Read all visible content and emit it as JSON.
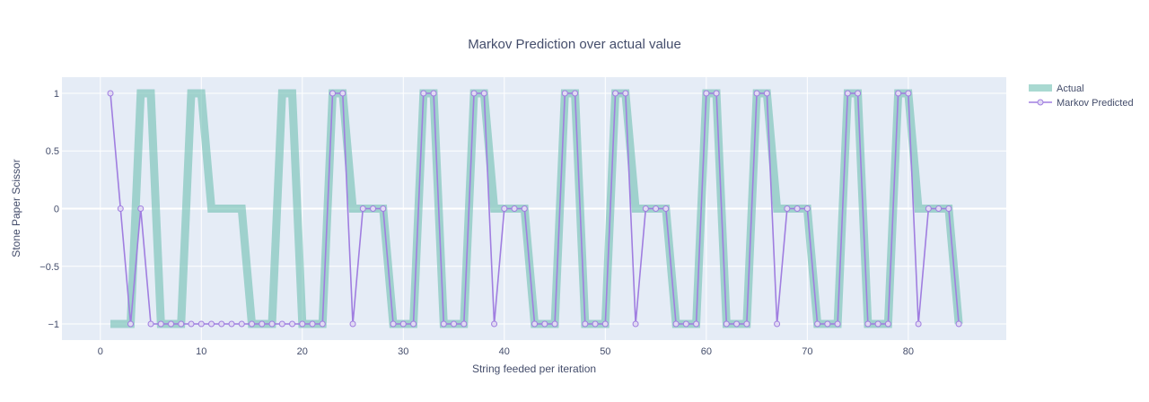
{
  "chart_data": {
    "type": "line",
    "title": "Markov Prediction over actual value",
    "xlabel": "String feeded per iteration",
    "ylabel": "Stone Paper Scissor",
    "xlim": [
      -3.8,
      89.7
    ],
    "ylim": [
      -1.14,
      1.14
    ],
    "xticks": [
      0,
      10,
      20,
      30,
      40,
      50,
      60,
      70,
      80
    ],
    "yticks": [
      -1,
      -0.5,
      0,
      0.5,
      1
    ],
    "ytick_labels": [
      "−1",
      "−0.5",
      "0",
      "0.5",
      "1"
    ],
    "legend_position": "top-right",
    "series": [
      {
        "name": "Actual",
        "color": "#6fc0b2",
        "style": "thick-line",
        "x": [
          1,
          2,
          3,
          4,
          5,
          6,
          7,
          8,
          9,
          10,
          11,
          12,
          13,
          14,
          15,
          16,
          17,
          18,
          19,
          20,
          21,
          22,
          23,
          24,
          25,
          26,
          27,
          28,
          29,
          30,
          31,
          32,
          33,
          34,
          35,
          36,
          37,
          38,
          39,
          40,
          41,
          42,
          43,
          44,
          45,
          46,
          47,
          48,
          49,
          50,
          51,
          52,
          53,
          54,
          55,
          56,
          57,
          58,
          59,
          60,
          61,
          62,
          63,
          64,
          65,
          66,
          67,
          68,
          69,
          70,
          71,
          72,
          73,
          74,
          75,
          76,
          77,
          78,
          79,
          80,
          81,
          82,
          83,
          84,
          85
        ],
        "y": [
          -1,
          -1,
          -1,
          1,
          1,
          -1,
          -1,
          -1,
          1,
          1,
          0,
          0,
          0,
          0,
          -1,
          -1,
          -1,
          1,
          1,
          -1,
          -1,
          -1,
          1,
          1,
          0,
          0,
          0,
          0,
          -1,
          -1,
          -1,
          1,
          1,
          -1,
          -1,
          -1,
          1,
          1,
          0,
          0,
          0,
          0,
          -1,
          -1,
          -1,
          1,
          1,
          -1,
          -1,
          -1,
          1,
          1,
          0,
          0,
          0,
          0,
          -1,
          -1,
          -1,
          1,
          1,
          -1,
          -1,
          -1,
          1,
          1,
          0,
          0,
          0,
          0,
          -1,
          -1,
          -1,
          1,
          1,
          -1,
          -1,
          -1,
          1,
          1,
          0,
          0,
          0,
          0,
          -1
        ]
      },
      {
        "name": "Markov Predicted",
        "color": "#a07ee0",
        "style": "line+markers",
        "x": [
          1,
          2,
          3,
          4,
          5,
          6,
          7,
          8,
          9,
          10,
          11,
          12,
          13,
          14,
          15,
          16,
          17,
          18,
          19,
          20,
          21,
          22,
          23,
          24,
          25,
          26,
          27,
          28,
          29,
          30,
          31,
          32,
          33,
          34,
          35,
          36,
          37,
          38,
          39,
          40,
          41,
          42,
          43,
          44,
          45,
          46,
          47,
          48,
          49,
          50,
          51,
          52,
          53,
          54,
          55,
          56,
          57,
          58,
          59,
          60,
          61,
          62,
          63,
          64,
          65,
          66,
          67,
          68,
          69,
          70,
          71,
          72,
          73,
          74,
          75,
          76,
          77,
          78,
          79,
          80,
          81,
          82,
          83,
          84,
          85
        ],
        "y": [
          1,
          0,
          -1,
          0,
          -1,
          -1,
          -1,
          -1,
          -1,
          -1,
          -1,
          -1,
          -1,
          -1,
          -1,
          -1,
          -1,
          -1,
          -1,
          -1,
          -1,
          -1,
          1,
          1,
          -1,
          0,
          0,
          0,
          -1,
          -1,
          -1,
          1,
          1,
          -1,
          -1,
          -1,
          1,
          1,
          -1,
          0,
          0,
          0,
          -1,
          -1,
          -1,
          1,
          1,
          -1,
          -1,
          -1,
          1,
          1,
          -1,
          0,
          0,
          0,
          -1,
          -1,
          -1,
          1,
          1,
          -1,
          -1,
          -1,
          1,
          1,
          -1,
          0,
          0,
          0,
          -1,
          -1,
          -1,
          1,
          1,
          -1,
          -1,
          -1,
          1,
          1,
          -1,
          0,
          0,
          0,
          -1
        ]
      }
    ]
  }
}
